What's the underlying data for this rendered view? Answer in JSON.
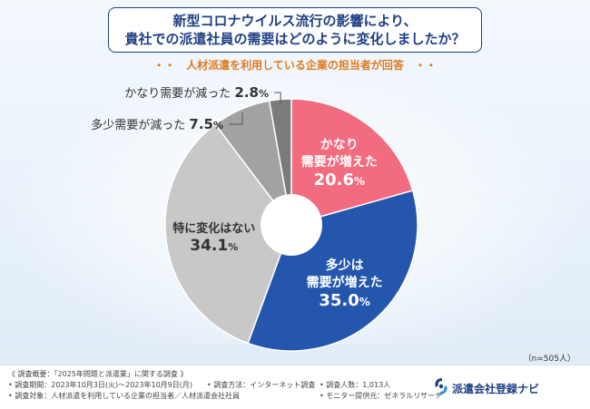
{
  "title": {
    "line1": "新型コロナウイルス流行の影響により、",
    "line2": "貴社での派遣社員の需要はどのように変化しましたか？"
  },
  "subtitle": "・・　人材派遣を利用している企業の担当者が回答　・・",
  "sample_note": "（n=505人）",
  "chart_data": {
    "type": "pie",
    "style": "donut",
    "categories": [
      "かなり需要が増えた",
      "多少は需要が増えた",
      "特に変化はない",
      "多少需要が減った",
      "かなり需要が減った"
    ],
    "values": [
      20.6,
      35.0,
      34.1,
      7.5,
      2.8
    ],
    "unit": "%",
    "colors": [
      "#f26b7e",
      "#2456ae",
      "#c8c8c8",
      "#a2a2a2",
      "#7b7b7b"
    ],
    "labels": [
      {
        "lines": [
          "かなり",
          "需要が増えた"
        ],
        "value": "20.6",
        "unit": "%"
      },
      {
        "lines": [
          "多少は",
          "需要が増えた"
        ],
        "value": "35.0",
        "unit": "%"
      },
      {
        "lines": [
          "特に変化はない"
        ],
        "value": "34.1",
        "unit": "%"
      },
      {
        "lines": [
          "多少需要が減った"
        ],
        "value": "7.5",
        "unit": "%"
      },
      {
        "lines": [
          "かなり需要が減った"
        ],
        "value": "2.8",
        "unit": "%"
      }
    ]
  },
  "footer": {
    "overview": "《 調査概要：「2025年問題と派遣業」に関する調査 》",
    "period": "• 調査期間：2023年10月3日(火)〜2023年10月9日(月)",
    "method": "• 調査方法：インターネット調査",
    "count": "• 調査人数：1,013人",
    "target": "• 調査対象：人材派遣を利用している企業の担当者／人材派遣会社社員",
    "provider": "• モニター提供元：ゼネラルリサーチ",
    "brand": "派遣会社登録ナビ"
  },
  "colors": {
    "title_border": "#1f3f85",
    "subtitle": "#e07a1f"
  }
}
